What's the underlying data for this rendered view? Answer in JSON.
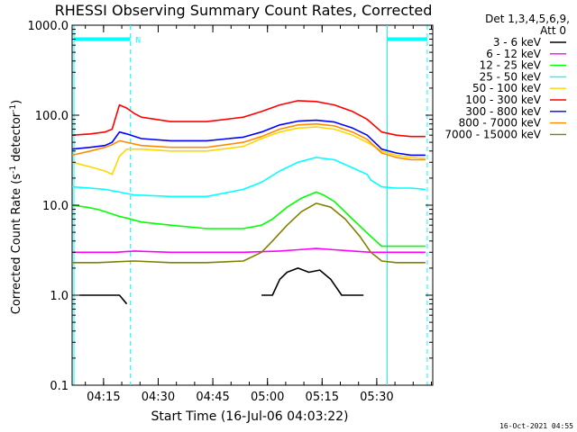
{
  "chart_data": {
    "type": "line",
    "title": "RHESSI Observing Summary Count Rates, Corrected",
    "xlabel": "Start Time (16-Jul-06 04:03:22)",
    "ylabel_main": "Corrected Count Rate (s",
    "ylabel_sup1": "-1",
    "ylabel_mid": " detector",
    "ylabel_sup2": "-1",
    "ylabel_end": ")",
    "yscale": "log",
    "ylim": [
      0.1,
      1000
    ],
    "y_ticks": [
      {
        "value": 0.1,
        "label": "0.1"
      },
      {
        "value": 1,
        "label": "1.0"
      },
      {
        "value": 10,
        "label": "10.0"
      },
      {
        "value": 100,
        "label": "100.0"
      },
      {
        "value": 1000,
        "label": "1000.0"
      }
    ],
    "xlim_min": [
      3.0,
      102.0
    ],
    "x_ticks": [
      {
        "value": 11.63,
        "label": "04:15"
      },
      {
        "value": 26.63,
        "label": "04:30"
      },
      {
        "value": 41.63,
        "label": "04:45"
      },
      {
        "value": 56.63,
        "label": "05:00"
      },
      {
        "value": 71.63,
        "label": "05:15"
      },
      {
        "value": 86.63,
        "label": "05:30"
      }
    ],
    "attenuator_label": "N",
    "legend_header_1": "Det 1,3,4,5,6,9,",
    "legend_header_2": "Att 0",
    "timestamp": "16-Oct-2021 04:55",
    "series": [
      {
        "name": "3 - 6 keV",
        "color": "#000000",
        "x": [
          5,
          8,
          12,
          16,
          18,
          30,
          45,
          55,
          58,
          60,
          62,
          65,
          68,
          71,
          74,
          77,
          80,
          83
        ],
        "y": [
          1.0,
          1.0,
          1.0,
          1.0,
          0.8,
          null,
          null,
          1.0,
          1.0,
          1.5,
          1.8,
          2.0,
          1.8,
          1.9,
          1.5,
          1.0,
          1.0,
          1.0
        ]
      },
      {
        "name": "6 - 12 keV",
        "color": "#ff00ff",
        "x": [
          3,
          10,
          15,
          20,
          30,
          40,
          50,
          60,
          65,
          70,
          75,
          80,
          85,
          90,
          95,
          100
        ],
        "y": [
          3.0,
          3.0,
          3.0,
          3.1,
          3.0,
          3.0,
          3.0,
          3.1,
          3.2,
          3.3,
          3.2,
          3.1,
          3.0,
          3.0,
          3.0,
          3.0
        ]
      },
      {
        "name": "12 - 25 keV",
        "color": "#00ff00",
        "x": [
          3,
          7,
          10,
          12,
          14,
          16,
          18,
          22,
          30,
          40,
          50,
          55,
          58,
          62,
          66,
          70,
          72,
          75,
          80,
          85,
          88,
          92,
          96,
          100
        ],
        "y": [
          10.0,
          9.5,
          9.0,
          8.5,
          8.0,
          7.5,
          7.2,
          6.5,
          6.0,
          5.5,
          5.5,
          6.0,
          7.0,
          9.5,
          12.0,
          14.0,
          13.0,
          11.0,
          7.0,
          4.5,
          3.5,
          3.5,
          3.5,
          3.5
        ]
      },
      {
        "name": "25 - 50 keV",
        "color": "#00ffff",
        "x": [
          3,
          8,
          12,
          16,
          20,
          30,
          40,
          50,
          55,
          60,
          65,
          70,
          75,
          80,
          84,
          85,
          88,
          92,
          96,
          100
        ],
        "y": [
          16.0,
          15.5,
          15.0,
          14.0,
          13.0,
          12.5,
          12.5,
          15.0,
          18.0,
          24.0,
          30.0,
          34.0,
          32.0,
          26.0,
          22.0,
          19.0,
          16.0,
          15.5,
          15.5,
          15.0
        ]
      },
      {
        "name": "50 - 100 keV",
        "color": "#ffd700",
        "x": [
          3,
          6,
          9,
          12,
          14,
          16,
          18,
          22,
          30,
          40,
          50,
          55,
          60,
          65,
          70,
          75,
          80,
          84,
          88,
          92,
          96,
          100
        ],
        "y": [
          30.0,
          28.0,
          26.0,
          24.0,
          22.0,
          35.0,
          42.0,
          42.0,
          40.0,
          40.0,
          45.0,
          55.0,
          65.0,
          72.0,
          74.0,
          70.0,
          60.0,
          50.0,
          40.0,
          36.0,
          34.0,
          33.0
        ]
      },
      {
        "name": "100 - 300 keV",
        "color": "#ff0000",
        "x": [
          3,
          8,
          12,
          14,
          16,
          18,
          20,
          22,
          30,
          40,
          50,
          55,
          60,
          65,
          70,
          75,
          80,
          84,
          88,
          92,
          96,
          100
        ],
        "y": [
          60.0,
          62.0,
          65.0,
          70.0,
          130.0,
          120.0,
          105.0,
          95.0,
          85.0,
          85.0,
          95.0,
          110.0,
          130.0,
          145.0,
          142.0,
          130.0,
          110.0,
          90.0,
          65.0,
          60.0,
          58.0,
          58.0
        ]
      },
      {
        "name": "300 - 800 keV",
        "color": "#0000ff",
        "x": [
          3,
          8,
          12,
          14,
          16,
          18,
          22,
          30,
          40,
          50,
          55,
          60,
          65,
          70,
          75,
          80,
          84,
          88,
          92,
          96,
          100
        ],
        "y": [
          42.0,
          44.0,
          46.0,
          50.0,
          65.0,
          62.0,
          55.0,
          52.0,
          52.0,
          57.0,
          65.0,
          78.0,
          86.0,
          88.0,
          84.0,
          72.0,
          60.0,
          42.0,
          38.0,
          36.0,
          36.0
        ]
      },
      {
        "name": "800 - 7000 keV",
        "color": "#ff8c00",
        "x": [
          3,
          8,
          12,
          14,
          16,
          18,
          22,
          30,
          40,
          50,
          55,
          60,
          65,
          70,
          75,
          80,
          84,
          88,
          92,
          96,
          100
        ],
        "y": [
          36.0,
          40.0,
          44.0,
          47.0,
          52.0,
          50.0,
          46.0,
          44.0,
          44.0,
          50.0,
          58.0,
          70.0,
          78.0,
          80.0,
          76.0,
          65.0,
          54.0,
          38.0,
          34.0,
          32.0,
          32.0
        ]
      },
      {
        "name": "7000 - 15000 keV",
        "color": "#808000",
        "x": [
          3,
          10,
          20,
          30,
          40,
          50,
          55,
          58,
          62,
          66,
          70,
          74,
          78,
          82,
          85,
          88,
          92,
          96,
          100
        ],
        "y": [
          2.3,
          2.3,
          2.4,
          2.3,
          2.3,
          2.4,
          3.0,
          4.0,
          6.0,
          8.5,
          10.5,
          9.5,
          7.0,
          4.5,
          3.0,
          2.4,
          2.3,
          2.3,
          2.3
        ]
      }
    ],
    "markers": {
      "solid_vertical_x": [
        3.5,
        89.5
      ],
      "dashed_vertical_x": [
        19.0,
        89.5,
        100.5
      ],
      "attenuator_bar_segments": [
        [
          3.5,
          19.0
        ],
        [
          89.5,
          100.5
        ]
      ],
      "attenuator_bar_y": 700,
      "attenuator_bar_color": "#00ffff"
    }
  }
}
